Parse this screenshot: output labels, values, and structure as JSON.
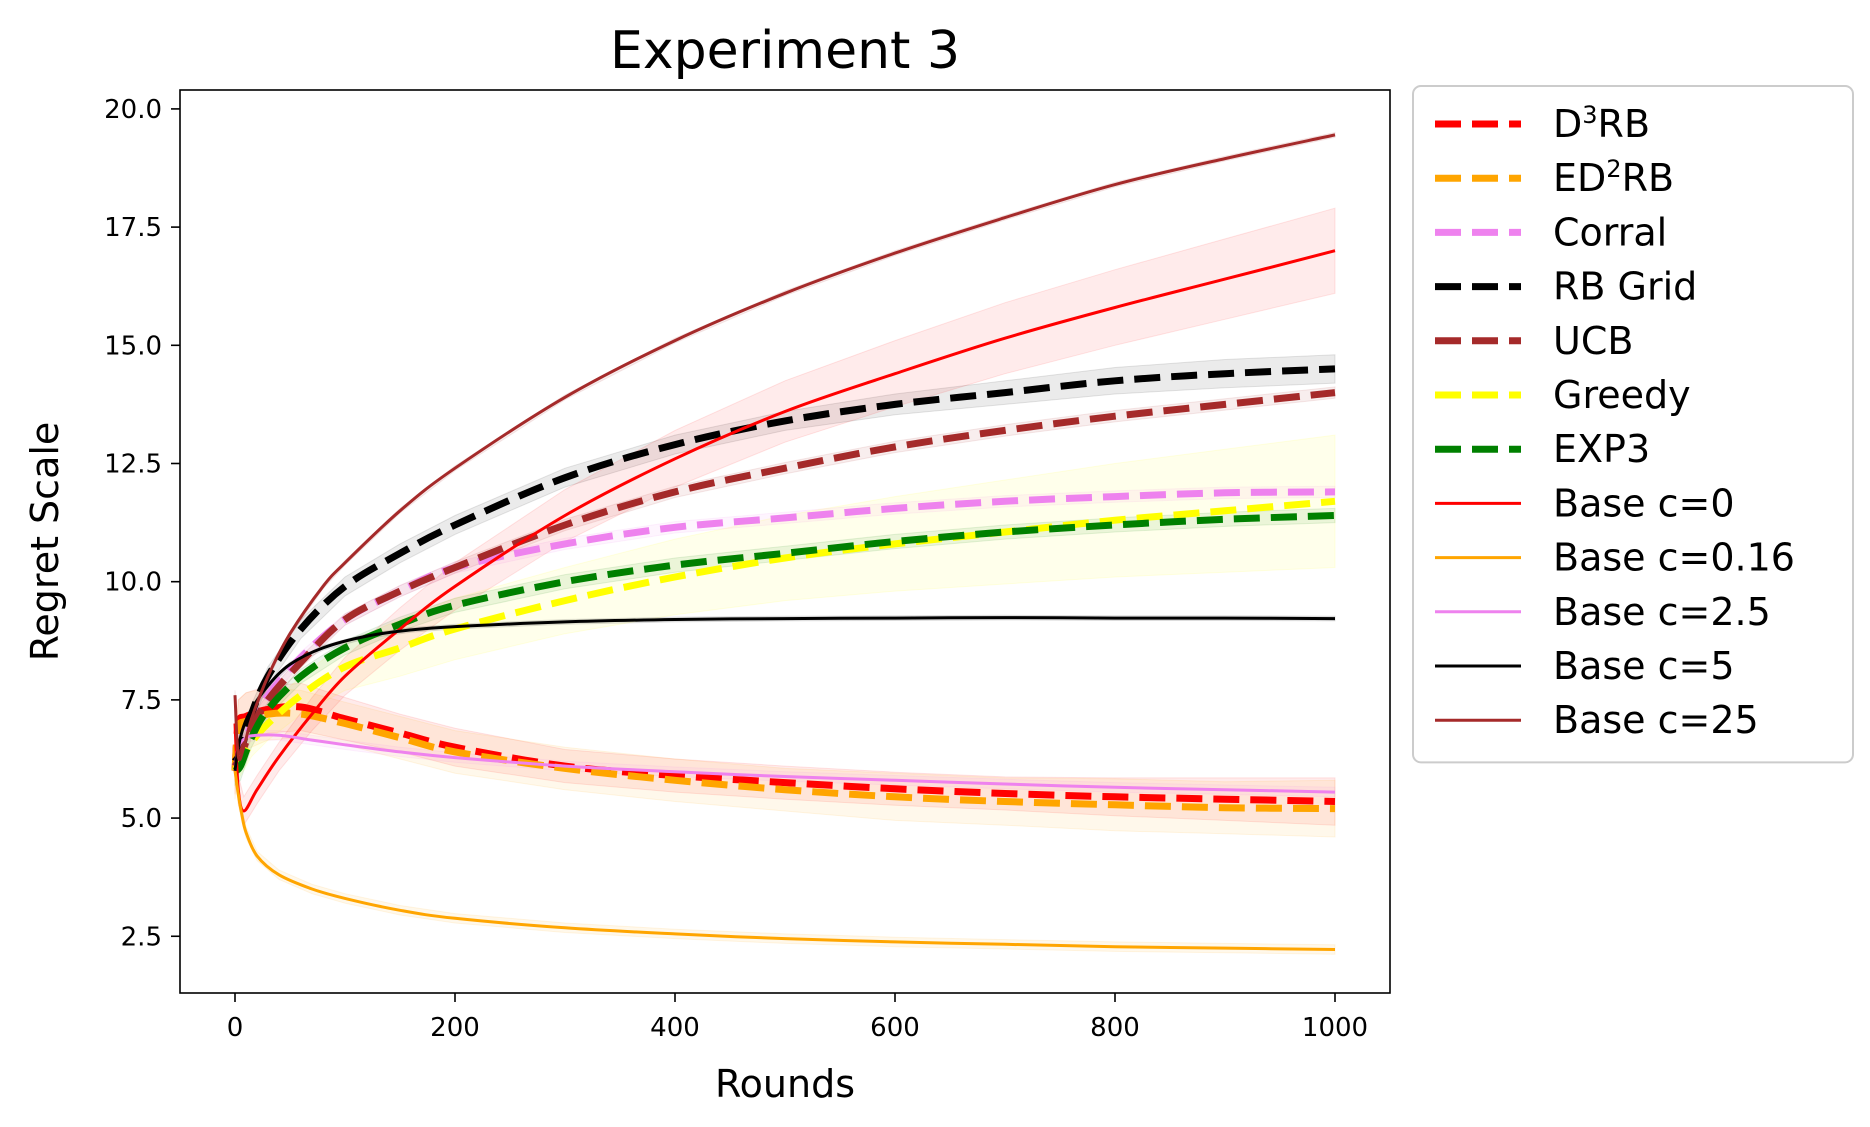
{
  "chart_data": {
    "type": "line",
    "title": "Experiment 3",
    "xlabel": "Rounds",
    "ylabel": "Regret Scale",
    "xlim": [
      -50,
      1050
    ],
    "ylim": [
      1.3,
      20.4
    ],
    "xticks": [
      0,
      200,
      400,
      600,
      800,
      1000
    ],
    "xtick_labels": [
      "0",
      "200",
      "400",
      "600",
      "800",
      "1000"
    ],
    "yticks": [
      2.5,
      5.0,
      7.5,
      10.0,
      12.5,
      15.0,
      17.5,
      20.0
    ],
    "ytick_labels": [
      "2.5",
      "5.0",
      "7.5",
      "10.0",
      "12.5",
      "15.0",
      "17.5",
      "20.0"
    ],
    "grid": false,
    "legend_placement": "outside right",
    "series": [
      {
        "name": "D³RB",
        "label_main": "D",
        "label_sup": "3",
        "label_rest": "RB",
        "color": "#ff0000",
        "style": "dashed",
        "x": [
          0,
          3,
          10,
          30,
          60,
          100,
          150,
          200,
          300,
          400,
          500,
          600,
          700,
          800,
          900,
          1000
        ],
        "y": [
          6.0,
          7.0,
          7.15,
          7.3,
          7.35,
          7.1,
          6.8,
          6.5,
          6.1,
          5.9,
          5.75,
          5.62,
          5.52,
          5.45,
          5.4,
          5.35
        ],
        "band": [
          0.5,
          0.5,
          0.5,
          0.5,
          0.5,
          0.45,
          0.4,
          0.4,
          0.35,
          0.35,
          0.35,
          0.35,
          0.35,
          0.4,
          0.45,
          0.5
        ]
      },
      {
        "name": "ED²RB",
        "label_main": "ED",
        "label_sup": "2",
        "label_rest": "RB",
        "color": "#ffa500",
        "style": "dashed",
        "x": [
          0,
          3,
          10,
          30,
          60,
          100,
          150,
          200,
          300,
          400,
          500,
          600,
          700,
          800,
          900,
          1000
        ],
        "y": [
          6.0,
          6.9,
          7.05,
          7.2,
          7.2,
          7.0,
          6.7,
          6.4,
          6.05,
          5.8,
          5.6,
          5.45,
          5.35,
          5.28,
          5.22,
          5.2
        ],
        "band": [
          0.6,
          0.6,
          0.6,
          0.55,
          0.5,
          0.45,
          0.45,
          0.45,
          0.45,
          0.45,
          0.45,
          0.5,
          0.5,
          0.55,
          0.55,
          0.6
        ]
      },
      {
        "name": "Corral",
        "label_main": "Corral",
        "label_sup": "",
        "label_rest": "",
        "color": "#ee82ee",
        "style": "dashed",
        "x": [
          0,
          5,
          15,
          30,
          60,
          100,
          150,
          200,
          300,
          400,
          500,
          600,
          700,
          800,
          900,
          1000
        ],
        "y": [
          6.1,
          6.3,
          7.0,
          7.6,
          8.4,
          9.2,
          9.8,
          10.3,
          10.8,
          11.15,
          11.35,
          11.55,
          11.7,
          11.8,
          11.88,
          11.9
        ],
        "band": [
          0.3,
          0.3,
          0.2,
          0.15,
          0.12,
          0.12,
          0.12,
          0.12,
          0.12,
          0.12,
          0.12,
          0.12,
          0.12,
          0.12,
          0.12,
          0.12
        ]
      },
      {
        "name": "RB Grid",
        "label_main": "RB Grid",
        "label_sup": "",
        "label_rest": "",
        "color": "#000000",
        "style": "dashed",
        "x": [
          0,
          5,
          15,
          30,
          60,
          100,
          150,
          200,
          300,
          400,
          500,
          600,
          700,
          800,
          900,
          1000
        ],
        "y": [
          6.2,
          6.4,
          7.2,
          8.0,
          9.0,
          9.9,
          10.6,
          11.2,
          12.2,
          12.9,
          13.4,
          13.75,
          14.0,
          14.25,
          14.4,
          14.5
        ],
        "band": [
          0.3,
          0.3,
          0.2,
          0.2,
          0.2,
          0.2,
          0.2,
          0.2,
          0.2,
          0.2,
          0.2,
          0.22,
          0.25,
          0.28,
          0.3,
          0.3
        ]
      },
      {
        "name": "UCB",
        "label_main": "UCB",
        "label_sup": "",
        "label_rest": "",
        "color": "#a52a2a",
        "style": "dashed",
        "x": [
          0,
          5,
          15,
          30,
          60,
          100,
          150,
          200,
          300,
          400,
          500,
          600,
          700,
          800,
          900,
          1000
        ],
        "y": [
          6.1,
          6.3,
          6.9,
          7.5,
          8.3,
          9.2,
          9.8,
          10.3,
          11.2,
          11.9,
          12.4,
          12.85,
          13.2,
          13.5,
          13.75,
          14.0
        ],
        "band": [
          0.3,
          0.3,
          0.2,
          0.15,
          0.12,
          0.12,
          0.12,
          0.12,
          0.12,
          0.12,
          0.12,
          0.12,
          0.12,
          0.12,
          0.12,
          0.12
        ]
      },
      {
        "name": "Greedy",
        "label_main": "Greedy",
        "label_sup": "",
        "label_rest": "",
        "color": "#ffff00",
        "style": "dashed",
        "x": [
          0,
          5,
          15,
          30,
          60,
          100,
          150,
          200,
          300,
          400,
          500,
          600,
          700,
          800,
          900,
          1000
        ],
        "y": [
          6.0,
          6.2,
          6.6,
          7.0,
          7.6,
          8.2,
          8.6,
          9.0,
          9.6,
          10.1,
          10.5,
          10.8,
          11.05,
          11.3,
          11.5,
          11.7
        ],
        "band": [
          0.3,
          0.3,
          0.3,
          0.35,
          0.4,
          0.5,
          0.6,
          0.65,
          0.7,
          0.8,
          0.9,
          1.0,
          1.1,
          1.2,
          1.3,
          1.4
        ]
      },
      {
        "name": "EXP3",
        "label_main": "EXP3",
        "label_sup": "",
        "label_rest": "",
        "color": "#008000",
        "style": "dashed",
        "x": [
          0,
          5,
          15,
          30,
          60,
          100,
          150,
          200,
          300,
          400,
          500,
          600,
          700,
          800,
          900,
          1000
        ],
        "y": [
          6.0,
          6.1,
          6.7,
          7.3,
          8.0,
          8.6,
          9.1,
          9.5,
          10.0,
          10.35,
          10.6,
          10.85,
          11.05,
          11.2,
          11.32,
          11.4
        ],
        "band": [
          0.3,
          0.3,
          0.2,
          0.15,
          0.15,
          0.15,
          0.15,
          0.15,
          0.15,
          0.15,
          0.15,
          0.15,
          0.15,
          0.15,
          0.15,
          0.15
        ]
      },
      {
        "name": "Base c=0",
        "label_main": "Base c=0",
        "label_sup": "",
        "label_rest": "",
        "color": "#ff0000",
        "style": "solid",
        "x": [
          0,
          3,
          8,
          20,
          40,
          70,
          100,
          150,
          200,
          300,
          400,
          500,
          600,
          700,
          800,
          900,
          1000
        ],
        "y": [
          7.0,
          5.6,
          5.15,
          5.6,
          6.3,
          7.2,
          8.0,
          9.0,
          9.9,
          11.4,
          12.6,
          13.6,
          14.4,
          15.15,
          15.8,
          16.4,
          17.0
        ],
        "band": [
          0.3,
          0.3,
          0.3,
          0.3,
          0.3,
          0.35,
          0.4,
          0.45,
          0.5,
          0.55,
          0.6,
          0.65,
          0.7,
          0.75,
          0.8,
          0.85,
          0.9
        ]
      },
      {
        "name": "Base c=0.16",
        "label_main": "Base c=0.16",
        "label_sup": "",
        "label_rest": "",
        "color": "#ffa500",
        "style": "solid",
        "x": [
          0,
          3,
          6,
          10,
          20,
          40,
          70,
          100,
          150,
          200,
          300,
          400,
          500,
          600,
          700,
          800,
          900,
          1000
        ],
        "y": [
          6.0,
          5.5,
          5.1,
          4.7,
          4.2,
          3.8,
          3.5,
          3.3,
          3.05,
          2.88,
          2.68,
          2.55,
          2.45,
          2.38,
          2.33,
          2.28,
          2.25,
          2.22
        ],
        "band": [
          0.2,
          0.2,
          0.15,
          0.12,
          0.1,
          0.1,
          0.1,
          0.1,
          0.1,
          0.1,
          0.1,
          0.1,
          0.1,
          0.1,
          0.1,
          0.1,
          0.1,
          0.1
        ]
      },
      {
        "name": "Base c=2.5",
        "label_main": "Base c=2.5",
        "label_sup": "",
        "label_rest": "",
        "color": "#ee82ee",
        "style": "solid",
        "x": [
          0,
          3,
          10,
          20,
          40,
          70,
          100,
          150,
          200,
          300,
          400,
          500,
          600,
          700,
          800,
          900,
          1000
        ],
        "y": [
          6.0,
          6.5,
          6.7,
          6.75,
          6.75,
          6.65,
          6.55,
          6.4,
          6.28,
          6.1,
          5.98,
          5.88,
          5.8,
          5.72,
          5.65,
          5.6,
          5.55
        ],
        "band": [
          0.15,
          0.15,
          0.1,
          0.1,
          0.1,
          0.1,
          0.1,
          0.1,
          0.1,
          0.1,
          0.1,
          0.1,
          0.1,
          0.1,
          0.1,
          0.1,
          0.1
        ]
      },
      {
        "name": "Base c=5",
        "label_main": "Base c=5",
        "label_sup": "",
        "label_rest": "",
        "color": "#000000",
        "style": "solid",
        "x": [
          0,
          3,
          8,
          15,
          30,
          50,
          80,
          120,
          160,
          200,
          300,
          400,
          500,
          600,
          700,
          800,
          900,
          1000
        ],
        "y": [
          6.0,
          6.5,
          6.95,
          7.3,
          7.8,
          8.25,
          8.6,
          8.85,
          8.98,
          9.05,
          9.15,
          9.2,
          9.22,
          9.23,
          9.24,
          9.23,
          9.23,
          9.22
        ],
        "band": [
          0.15,
          0.15,
          0.1,
          0.08,
          0.06,
          0.05,
          0.05,
          0.05,
          0.05,
          0.05,
          0.05,
          0.05,
          0.05,
          0.05,
          0.05,
          0.05,
          0.05,
          0.05
        ]
      },
      {
        "name": "Base c=25",
        "label_main": "Base c=25",
        "label_sup": "",
        "label_rest": "",
        "color": "#a52a2a",
        "style": "solid",
        "x": [
          0,
          3,
          8,
          15,
          30,
          50,
          80,
          100,
          150,
          200,
          300,
          400,
          500,
          600,
          700,
          800,
          900,
          1000
        ],
        "y": [
          7.6,
          6.3,
          6.5,
          7.1,
          8.0,
          8.9,
          9.9,
          10.4,
          11.5,
          12.4,
          13.9,
          15.1,
          16.1,
          16.95,
          17.7,
          18.4,
          18.95,
          19.45
        ],
        "band": [
          0.1,
          0.1,
          0.08,
          0.06,
          0.05,
          0.05,
          0.05,
          0.05,
          0.05,
          0.05,
          0.05,
          0.05,
          0.05,
          0.05,
          0.05,
          0.05,
          0.05,
          0.05
        ]
      }
    ]
  }
}
